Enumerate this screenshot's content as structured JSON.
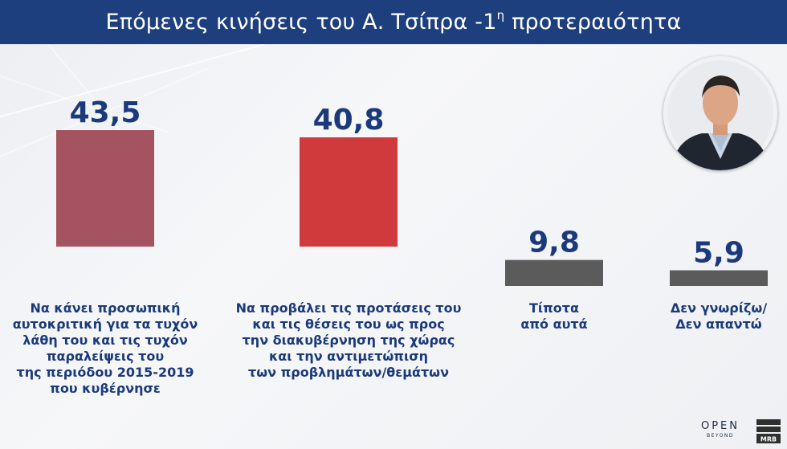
{
  "header": {
    "title": "Επόμενες κινήσεις του Α. Τσίπρα -1",
    "title_sup": "η",
    "title_end": " προτεραιότητα"
  },
  "chart_data": {
    "type": "bar",
    "categories": [
      "Να κάνει προσωπική\nαυτοκριτική για τα τυχόν\nλάθη του και τις τυχόν\nπαραλείψεις του\nτης περιόδου 2015-2019\nπου κυβέρνησε",
      "Να προβάλει τις προτάσεις του\nκαι τις θέσεις του ως προς\nτην διακυβέρνηση της χώρας\nκαι την αντιμετώπιση\nτων προβλημάτων/θεμάτων",
      "Τίποτα\nαπό αυτά",
      "Δεν γνωρίζω/\nΔεν απαντώ"
    ],
    "values": [
      43.5,
      40.8,
      9.8,
      5.9
    ],
    "value_labels": [
      "43,5",
      "40,8",
      "9,8",
      "5,9"
    ],
    "bar_colors": [
      "#a55361",
      "#d13a3d",
      "#5b5b5b",
      "#5b5b5b"
    ],
    "value_label_color": "#1b3a7b"
  },
  "logos": {
    "open_main": "OPEN",
    "open_sub": "BEYOND",
    "mrb": "MRB"
  },
  "colors": {
    "header_bg": "#1e3f7e",
    "text_accent": "#1b3a7b"
  }
}
